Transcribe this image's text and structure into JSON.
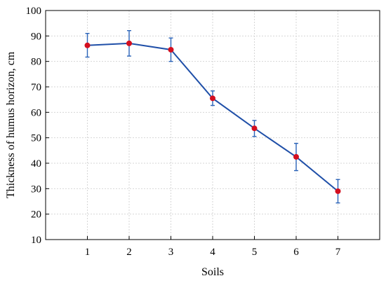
{
  "chart_data": {
    "type": "line",
    "title": "",
    "xlabel": "Soils",
    "ylabel": "Thickness of humus horizon, cm",
    "categories": [
      "1",
      "2",
      "3",
      "4",
      "5",
      "6",
      "7"
    ],
    "x": [
      1,
      2,
      3,
      4,
      5,
      6,
      7
    ],
    "xlim": [
      0,
      8
    ],
    "ylim": [
      10,
      100
    ],
    "yticks": [
      10,
      20,
      30,
      40,
      50,
      60,
      70,
      80,
      90,
      100
    ],
    "grid": true,
    "series": [
      {
        "values": [
          86.3,
          87.1,
          84.6,
          65.5,
          53.7,
          42.5,
          29.0
        ],
        "error_low": [
          81.7,
          82.1,
          80.0,
          62.7,
          50.5,
          37.1,
          24.4
        ],
        "error_high": [
          91.0,
          92.1,
          89.2,
          68.4,
          56.8,
          47.8,
          33.6
        ],
        "line_color": "#1f4fa8",
        "marker_color": "#d40f1f",
        "error_color": "#2a63b8"
      }
    ]
  }
}
